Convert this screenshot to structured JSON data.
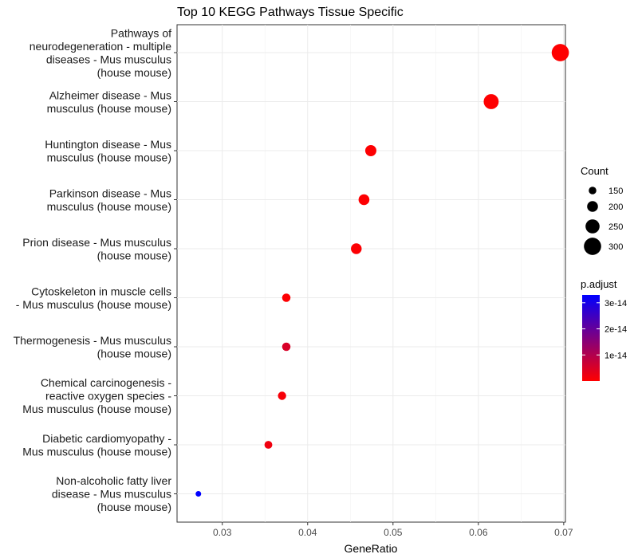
{
  "chart_data": {
    "type": "scatter",
    "title": "Top 10 KEGG Pathways Tissue Specific",
    "xlabel": "GeneRatio",
    "ylabel": "",
    "xlim": [
      0.0247,
      0.0702
    ],
    "xticks": [
      0.03,
      0.04,
      0.05,
      0.06,
      0.07
    ],
    "xtick_labels": [
      "0.03",
      "0.04",
      "0.05",
      "0.06",
      "0.07"
    ],
    "grid": true,
    "points": [
      {
        "label": [
          "Pathways of",
          "neurodegeneration - multiple",
          "diseases - Mus musculus",
          "(house mouse)"
        ],
        "x": 0.0696,
        "count": 300,
        "p_adjust": 1e-16
      },
      {
        "label": [
          "Alzheimer disease - Mus",
          "musculus (house mouse)"
        ],
        "x": 0.0615,
        "count": 265,
        "p_adjust": 1e-16
      },
      {
        "label": [
          "Huntington disease - Mus",
          "musculus (house mouse)"
        ],
        "x": 0.0474,
        "count": 205,
        "p_adjust": 2e-16
      },
      {
        "label": [
          "Parkinson disease - Mus",
          "musculus (house mouse)"
        ],
        "x": 0.0466,
        "count": 200,
        "p_adjust": 3e-16
      },
      {
        "label": [
          "Prion disease - Mus musculus",
          "(house mouse)"
        ],
        "x": 0.0457,
        "count": 198,
        "p_adjust": 4e-16
      },
      {
        "label": [
          "Cytoskeleton in muscle cells",
          "- Mus musculus (house mouse)"
        ],
        "x": 0.0375,
        "count": 162,
        "p_adjust": 2e-16
      },
      {
        "label": [
          "Thermogenesis - Mus musculus",
          "(house mouse)"
        ],
        "x": 0.0375,
        "count": 162,
        "p_adjust": 5e-15
      },
      {
        "label": [
          "Chemical carcinogenesis -",
          "reactive oxygen species -",
          "Mus musculus (house mouse)"
        ],
        "x": 0.037,
        "count": 160,
        "p_adjust": 1e-15
      },
      {
        "label": [
          "Diabetic cardiomyopathy -",
          "Mus musculus (house mouse)"
        ],
        "x": 0.0354,
        "count": 153,
        "p_adjust": 2e-15
      },
      {
        "label": [
          "Non-alcoholic fatty liver",
          "disease - Mus musculus",
          "(house mouse)"
        ],
        "x": 0.0272,
        "count": 118,
        "p_adjust": 3.3e-14
      }
    ],
    "legend_size": {
      "title": "Count",
      "values": [
        150,
        200,
        250,
        300
      ],
      "labels": [
        "150",
        "200",
        "250",
        "300"
      ]
    },
    "legend_color": {
      "title": "p.adjust",
      "ticks": [
        3e-14,
        2e-14,
        1e-14
      ],
      "labels": [
        "3e-14",
        "2e-14",
        "1e-14"
      ],
      "low_color": "#ff0000",
      "high_color": "#0000ff",
      "range": [
        0,
        3.3e-14
      ]
    }
  }
}
